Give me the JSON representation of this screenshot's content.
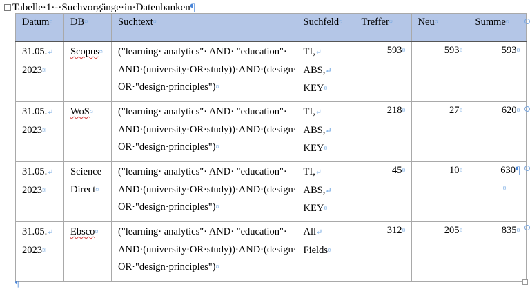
{
  "caption": {
    "text": "Tabelle·1·-·Suchvorgänge·in·Datenbanken",
    "pilcrow": "¶"
  },
  "marks": {
    "cell": "¤",
    "line_break": "↵",
    "pilcrow": "¶"
  },
  "headers": [
    "Datum",
    "DB",
    "Suchtext",
    "Suchfeld",
    "Treffer",
    "Neu",
    "Summe"
  ],
  "rows": [
    {
      "date_line1": "31.05.",
      "date_line2": "2023",
      "db_line1": "Scopus",
      "db_line2": "",
      "query_line1": "(\"learning· analytics\"· AND· \"education\"·",
      "query_line2": "AND·(university·OR·study))·AND·(design·",
      "query_line3": "OR·\"design·principles\")",
      "field_line1": "TI,",
      "field_line2": "ABS,",
      "field_line3": "KEY",
      "hits": "593",
      "new": "593",
      "sum": "593"
    },
    {
      "date_line1": "31.05.",
      "date_line2": "2023",
      "db_line1": "WoS",
      "db_line2": "",
      "query_line1": "(\"learning· analytics\"· AND· \"education\"·",
      "query_line2": "AND·(university·OR·study))·AND·(design·",
      "query_line3": "OR·\"design·principles\")",
      "field_line1": "TI,",
      "field_line2": "ABS,",
      "field_line3": "KEY",
      "hits": "218",
      "new": "27",
      "sum": "620"
    },
    {
      "date_line1": "31.05.",
      "date_line2": "2023",
      "db_line1": "Science",
      "db_line2": "Direct",
      "query_line1": "(\"learning· analytics\"· AND· \"education\"·",
      "query_line2": "AND·(university·OR·study))·AND·(design·",
      "query_line3": "OR·\"design·principles\")",
      "field_line1": "TI,",
      "field_line2": "ABS,",
      "field_line3": "KEY",
      "hits": "45",
      "new": "10",
      "sum": "630"
    },
    {
      "date_line1": "31.05.",
      "date_line2": "2023",
      "db_line1": "Ebsco",
      "db_line2": "",
      "query_line1": "(\"learning· analytics\"· AND· \"education\"·",
      "query_line2": "AND·(university·OR·study))·AND·(design·",
      "query_line3": "OR·\"design·principles\")",
      "field_line1": "All",
      "field_line2": "Fields",
      "field_line3": "",
      "hits": "312",
      "new": "205",
      "sum": "835"
    }
  ],
  "end_mark": "¶"
}
